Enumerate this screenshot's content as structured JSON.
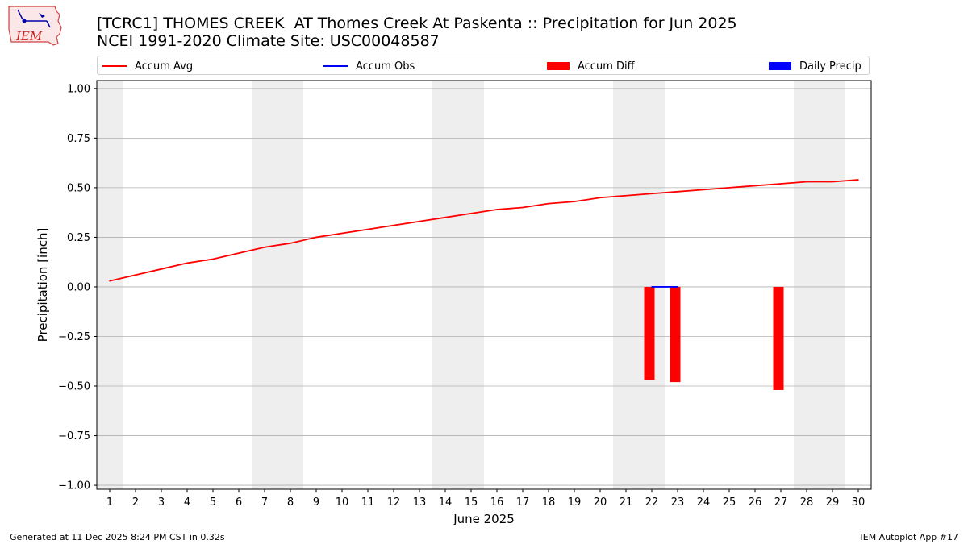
{
  "title_line1": "[TCRC1] THOMES CREEK  AT Thomes Creek At Paskenta :: Precipitation for Jun 2025",
  "title_line2": "NCEI 1991-2020 Climate Site: USC00048587",
  "logo_text": "IEM",
  "footer_left": "Generated at 11 Dec 2025 8:24 PM CST in 0.32s",
  "footer_right": "IEM Autoplot App #17",
  "colors": {
    "accum_avg": "#ff0000",
    "accum_obs": "#0000ff",
    "accum_diff": "#ff0000",
    "daily_precip": "#0000ff",
    "weekend_band": "#eeeeee",
    "grid": "#b0b0b0"
  },
  "chart_data": {
    "type": "line",
    "xlabel": "June 2025",
    "ylabel": "Precipitation [inch]",
    "xlim": [
      0.5,
      30.5
    ],
    "ylim": [
      -1.02,
      1.04
    ],
    "x_ticks": [
      1,
      2,
      3,
      4,
      5,
      6,
      7,
      8,
      9,
      10,
      11,
      12,
      13,
      14,
      15,
      16,
      17,
      18,
      19,
      20,
      21,
      22,
      23,
      24,
      25,
      26,
      27,
      28,
      29,
      30
    ],
    "y_ticks": [
      -1.0,
      -0.75,
      -0.5,
      -0.25,
      0.0,
      0.25,
      0.5,
      0.75,
      1.0
    ],
    "y_tick_labels": [
      "−1.00",
      "−0.75",
      "−0.50",
      "−0.25",
      "0.00",
      "0.25",
      "0.50",
      "0.75",
      "1.00"
    ],
    "grid": "horizontal",
    "legend_position": "top",
    "weekend_bands": [
      [
        0.5,
        1.5
      ],
      [
        6.5,
        8.5
      ],
      [
        13.5,
        15.5
      ],
      [
        20.5,
        22.5
      ],
      [
        27.5,
        29.5
      ]
    ],
    "legend": [
      "Accum Avg",
      "Accum Obs",
      "Accum Diff",
      "Daily Precip"
    ],
    "series": [
      {
        "name": "Accum Avg",
        "type": "line",
        "x": [
          1,
          2,
          3,
          4,
          5,
          6,
          7,
          8,
          9,
          10,
          11,
          12,
          13,
          14,
          15,
          16,
          17,
          18,
          19,
          20,
          21,
          22,
          23,
          24,
          25,
          26,
          27,
          28,
          29,
          30
        ],
        "values": [
          0.03,
          0.06,
          0.09,
          0.12,
          0.14,
          0.17,
          0.2,
          0.22,
          0.25,
          0.27,
          0.29,
          0.31,
          0.33,
          0.35,
          0.37,
          0.39,
          0.4,
          0.42,
          0.43,
          0.45,
          0.46,
          0.47,
          0.48,
          0.49,
          0.5,
          0.51,
          0.52,
          0.53,
          0.53,
          0.54
        ]
      },
      {
        "name": "Accum Obs",
        "type": "line",
        "x": [
          22,
          23
        ],
        "values": [
          0.0,
          0.0
        ]
      },
      {
        "name": "Accum Diff",
        "type": "bar",
        "x": [
          22,
          23,
          27
        ],
        "values": [
          -0.47,
          -0.48,
          -0.52
        ]
      },
      {
        "name": "Daily Precip",
        "type": "bar",
        "x": [],
        "values": []
      }
    ]
  }
}
